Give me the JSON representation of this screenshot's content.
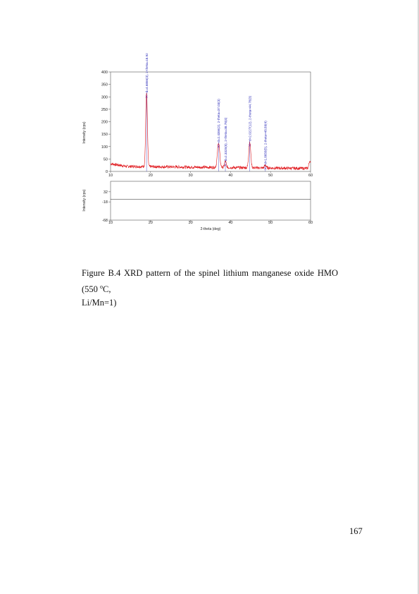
{
  "chart_data": [
    {
      "type": "line",
      "title": "",
      "xlabel": "",
      "ylabel": "Intensity (cps)",
      "xlim": [
        10,
        60
      ],
      "ylim": [
        0,
        400
      ],
      "xticks": [
        "10",
        "20",
        "30",
        "40",
        "50",
        "60"
      ],
      "yticks": [
        "0",
        "50",
        "100",
        "150",
        "200",
        "250",
        "300",
        "350",
        "400"
      ],
      "grid": false,
      "series_color": "#e0191e",
      "background_level": 15,
      "peaks": [
        {
          "x": 19.0,
          "y": 300,
          "width": 0.3
        },
        {
          "x": 37.0,
          "y": 100,
          "width": 0.4
        },
        {
          "x": 38.7,
          "y": 25,
          "width": 0.3
        },
        {
          "x": 44.8,
          "y": 105,
          "width": 0.35
        },
        {
          "x": 48.7,
          "y": 12,
          "width": 0.3
        },
        {
          "x": 59.8,
          "y": 30,
          "width": 0.3
        }
      ],
      "peak_labels": [
        {
          "x": 19.0,
          "text": "d=4.6856(3), 2-theta=18.92"
        },
        {
          "x": 37.0,
          "text": "d=2.4356(2), 2-theta=37.03(3)"
        },
        {
          "x": 38.7,
          "text": "d=2.3325(5), 2-theta=38.78(4)"
        },
        {
          "x": 44.8,
          "text": "d=2.0227(12), 2-theta=44.78(3)"
        },
        {
          "x": 48.7,
          "text": "d=1.8658(5), 2-theta=48.89(4)"
        }
      ]
    },
    {
      "type": "line",
      "title": "",
      "xlabel": "2-theta (deg)",
      "ylabel": "Intensity (cps)",
      "xlim": [
        10,
        60
      ],
      "ylim": [
        -50,
        50
      ],
      "xticks": [
        "10",
        "20",
        "30",
        "40",
        "50",
        "60"
      ],
      "yticks": [
        "32",
        "-18",
        "-68"
      ],
      "grid": false,
      "residual_level": 0
    }
  ],
  "caption": {
    "line1": "Figure B.4 XRD pattern of the spinel lithium manganese oxide HMO (550 ",
    "superscript": "o",
    "line1_end": "C,",
    "line2": "Li/Mn=1)"
  },
  "page_number": "167"
}
